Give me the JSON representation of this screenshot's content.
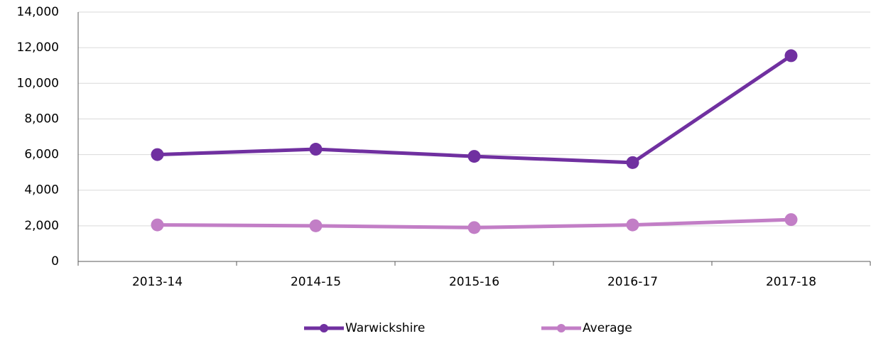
{
  "chart_data": {
    "type": "line",
    "categories": [
      "2013-14",
      "2014-15",
      "2015-16",
      "2016-17",
      "2017-18"
    ],
    "series": [
      {
        "name": "Warwickshire",
        "color": "#7030a0",
        "values": [
          6000,
          6300,
          5900,
          5550,
          11550
        ]
      },
      {
        "name": "Average",
        "color": "#c27ec6",
        "values": [
          2050,
          2000,
          1900,
          2050,
          2350
        ]
      }
    ],
    "ylim": [
      0,
      14000
    ],
    "yticks": [
      0,
      {
        "value": 2000,
        "label": "2,000"
      },
      {
        "value": 4000,
        "label": "4,000"
      },
      {
        "value": 6000,
        "label": "6,000"
      },
      {
        "value": 8000,
        "label": "8,000"
      },
      {
        "value": 10000,
        "label": "10,000"
      },
      {
        "value": 12000,
        "label": "12,000"
      },
      {
        "value": 14000,
        "label": "14,000"
      }
    ],
    "grid": true,
    "legend": "bottom"
  }
}
